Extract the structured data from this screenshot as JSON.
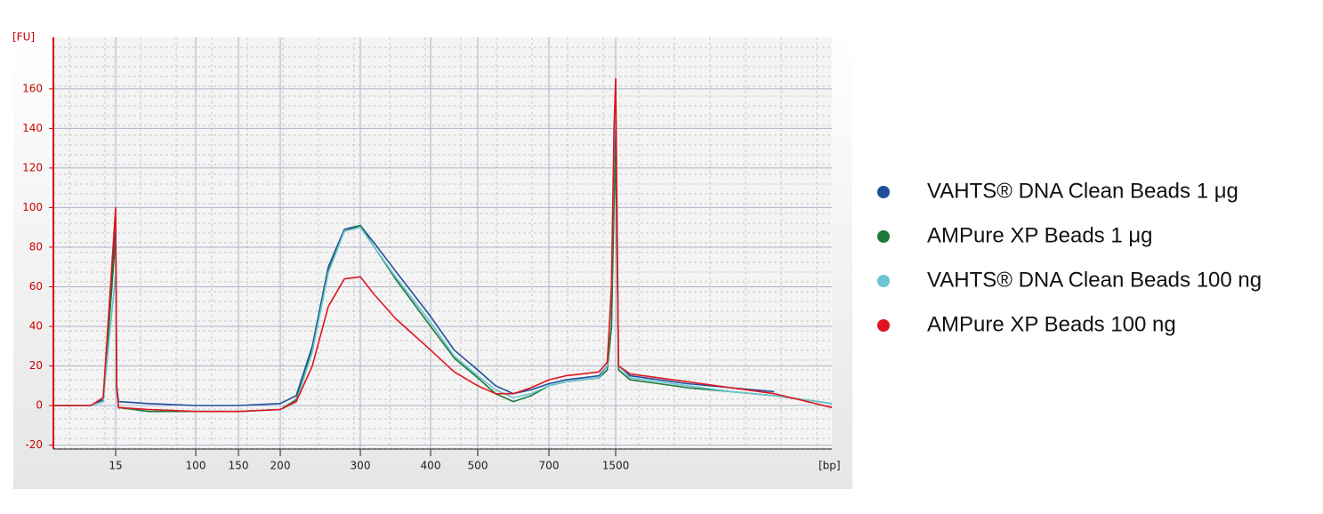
{
  "chart_data": {
    "type": "line",
    "y_label": "[FU]",
    "x_label": "[bp]",
    "x": [
      10,
      13,
      14,
      15,
      16,
      18,
      50,
      100,
      150,
      200,
      220,
      240,
      260,
      280,
      300,
      320,
      350,
      400,
      450,
      500,
      550,
      600,
      650,
      700,
      900,
      1100,
      1300,
      1400,
      1450,
      1480,
      1500,
      1520,
      1600,
      1800,
      2000,
      2300,
      2600,
      3000
    ],
    "xlim": [
      10,
      3000
    ],
    "xticks": [
      15,
      100,
      150,
      200,
      300,
      400,
      500,
      700,
      1500
    ],
    "ylim": [
      -22,
      186
    ],
    "yticks": [
      -20,
      0,
      20,
      40,
      60,
      80,
      100,
      120,
      140,
      160
    ],
    "grid": true,
    "legend": "right",
    "series": [
      {
        "name": "VAHTS® DNA Clean Beads 1 μg",
        "color": "#1f4e9c",
        "values": [
          0,
          0,
          3,
          95,
          10,
          2,
          1,
          0,
          0,
          1,
          5,
          30,
          70,
          89,
          91,
          82,
          68,
          45,
          28,
          18,
          10,
          6,
          8,
          11,
          13,
          14,
          15,
          20,
          40,
          120,
          150,
          20,
          15,
          13,
          11,
          9,
          7,
          null
        ]
      },
      {
        "name": "AMPure XP Beads 1 μg",
        "color": "#1a7a3a",
        "values": [
          0,
          0,
          2,
          85,
          8,
          -1,
          -3,
          -3,
          -3,
          -2,
          3,
          28,
          68,
          88,
          91,
          80,
          64,
          40,
          24,
          14,
          6,
          2,
          5,
          10,
          12,
          13,
          14,
          18,
          40,
          100,
          130,
          18,
          13,
          11,
          9,
          7,
          5,
          1
        ]
      },
      {
        "name": "VAHTS® DNA Clean Beads 100 ng",
        "color": "#6cc5d0",
        "values": [
          0,
          0,
          2,
          67,
          8,
          -1,
          -2,
          -3,
          -3,
          -2,
          2,
          27,
          67,
          88,
          90,
          80,
          65,
          42,
          25,
          15,
          8,
          4,
          6,
          10,
          12,
          13,
          14,
          20,
          60,
          130,
          165,
          20,
          14,
          12,
          10,
          7,
          5,
          1
        ]
      },
      {
        "name": "AMPure XP Beads 100 ng",
        "color": "#e0141e",
        "values": [
          0,
          0,
          4,
          100,
          10,
          -1,
          -2,
          -3,
          -3,
          -2,
          2,
          20,
          50,
          64,
          65,
          56,
          44,
          28,
          17,
          10,
          6,
          6,
          9,
          13,
          15,
          16,
          17,
          22,
          60,
          140,
          165,
          20,
          16,
          14,
          12,
          9,
          6,
          -1
        ]
      }
    ]
  }
}
